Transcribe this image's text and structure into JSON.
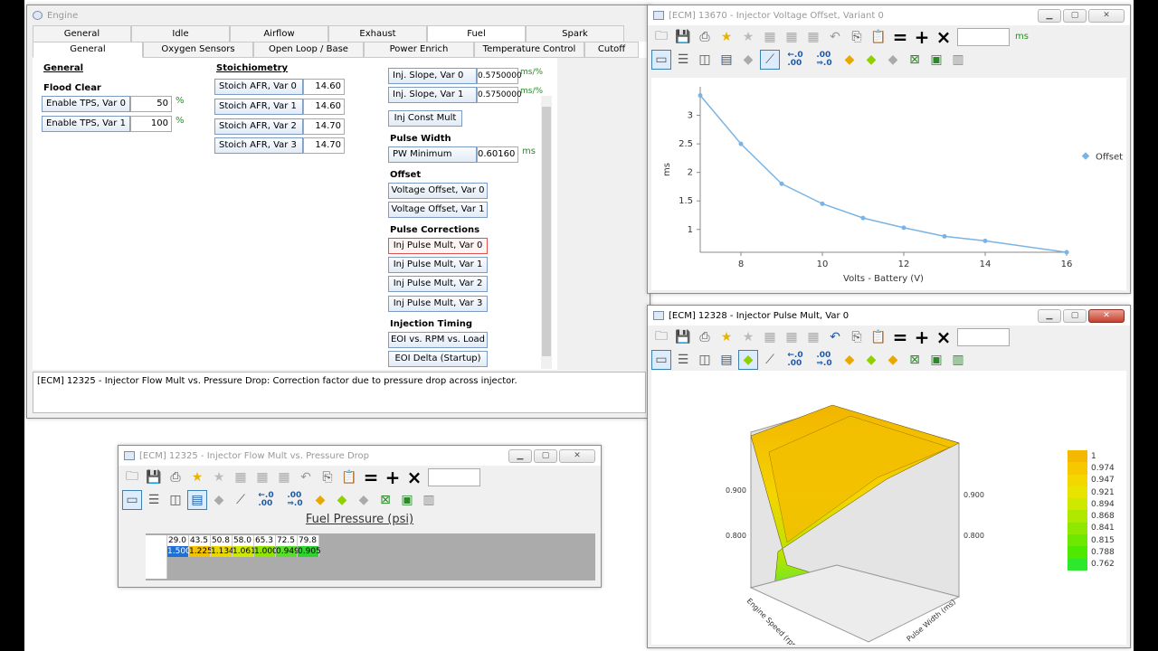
{
  "engine": {
    "title": "Engine",
    "tabs": [
      "General",
      "Idle",
      "Airflow",
      "Exhaust",
      "Fuel",
      "Spark"
    ],
    "active_tab": 4,
    "subtabs": [
      "General",
      "Oxygen Sensors",
      "Open Loop / Base",
      "Power Enrich",
      "Temperature Control",
      "Cutoff"
    ],
    "sections": {
      "general": "General",
      "flood_clear": "Flood Clear",
      "stoich": "Stoichiometry",
      "pulse_width": "Pulse Width",
      "offset": "Offset",
      "pulse_corrections": "Pulse Corrections",
      "injection_timing": "Injection Timing"
    },
    "flood_fields": [
      {
        "label": "Enable TPS, Var 0",
        "value": "50",
        "unit": "%"
      },
      {
        "label": "Enable TPS, Var 1",
        "value": "100",
        "unit": "%"
      }
    ],
    "stoich_fields": [
      {
        "label": "Stoich AFR, Var 0",
        "value": "14.60"
      },
      {
        "label": "Stoich AFR, Var 1",
        "value": "14.60"
      },
      {
        "label": "Stoich AFR, Var 2",
        "value": "14.70"
      },
      {
        "label": "Stoich AFR, Var 3",
        "value": "14.70"
      }
    ],
    "slope_fields": [
      {
        "label": "Inj. Slope, Var 0",
        "value": "0.5750000",
        "unit": "ms/%"
      },
      {
        "label": "Inj. Slope, Var 1",
        "value": "0.5750000",
        "unit": "ms/%"
      }
    ],
    "inj_const": "Inj Const Mult",
    "pw_min": {
      "label": "PW Minimum",
      "value": "0.60160",
      "unit": "ms"
    },
    "offset_buttons": [
      "Voltage Offset, Var 0",
      "Voltage Offset, Var 1"
    ],
    "pulse_buttons": [
      "Inj Pulse Mult, Var 0",
      "Inj Pulse Mult, Var 1",
      "Inj Pulse Mult, Var 2",
      "Inj Pulse Mult, Var 3"
    ],
    "timing_buttons": [
      "EOI vs. RPM vs. Load",
      "EOI Delta (Startup)"
    ],
    "status": "[ECM] 12325 - Injector Flow Mult vs. Pressure Drop: Correction factor due to pressure drop across injector."
  },
  "voltage_window": {
    "title": "[ECM] 13670 - Injector Voltage Offset, Variant 0",
    "unit": "ms"
  },
  "pulse_window": {
    "title": "[ECM] 12328 - Injector Pulse Mult, Var 0",
    "legend": [
      "1",
      "0.974",
      "0.947",
      "0.921",
      "0.894",
      "0.868",
      "0.841",
      "0.815",
      "0.788",
      "0.762"
    ],
    "legend_colors": [
      "#f5b800",
      "#f7c800",
      "#f2d800",
      "#e8e400",
      "#cfe800",
      "#b0e800",
      "#8fe800",
      "#6ee800",
      "#4ee800",
      "#2ee82e"
    ],
    "axis_left_ticks": [
      "0.900",
      "0.800"
    ],
    "axis_right_ticks": [
      "0.900",
      "0.800"
    ],
    "axis_x_title": "Engine Speed (rpm)",
    "axis_y_title": "Pulse Width (ms)"
  },
  "flow_window": {
    "title": "[ECM] 12325 - Injector Flow Mult vs. Pressure Drop",
    "axis_title": "Fuel Pressure (psi)",
    "headers": [
      "29.0",
      "43.5",
      "50.8",
      "58.0",
      "65.3",
      "72.5",
      "79.8"
    ],
    "values": [
      "1.500",
      "1.225",
      "1.134",
      "1.061",
      "1.000",
      "0.949",
      "0.905"
    ],
    "cell_colors": [
      "#1e6fd6",
      "#f2c200",
      "#e8d800",
      "#cfe800",
      "#8fe400",
      "#5ade2a",
      "#2ed42e"
    ]
  },
  "chart_data": {
    "type": "line",
    "title": "",
    "xlabel": "Volts - Battery (V)",
    "ylabel": "ms",
    "xlim": [
      7,
      16
    ],
    "ylim": [
      0.6,
      3.5
    ],
    "xticks": [
      8,
      10,
      12,
      14,
      16
    ],
    "yticks": [
      1,
      1.5,
      2,
      2.5,
      3
    ],
    "legend": "right",
    "series": [
      {
        "name": "Offset",
        "color": "#7ab4e4",
        "x": [
          7,
          8,
          9,
          10,
          11,
          12,
          13,
          14,
          16
        ],
        "y": [
          3.35,
          2.5,
          1.8,
          1.45,
          1.2,
          1.03,
          0.88,
          0.8,
          0.6
        ]
      }
    ]
  }
}
